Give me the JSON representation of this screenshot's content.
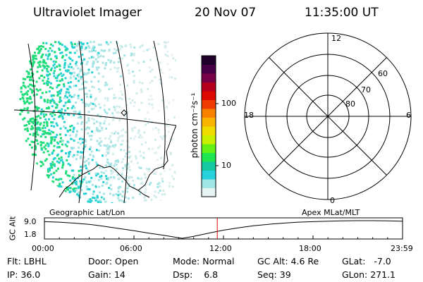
{
  "header": {
    "instrument": "Ultraviolet Imager",
    "date": "20 Nov 07",
    "time": "11:35:00 UT"
  },
  "colorbar": {
    "label": "photon cm⁻²s⁻¹",
    "tick_labels": [
      "100",
      "10"
    ],
    "scale": "log",
    "colors": [
      "#e8f4f4",
      "#a0e6e6",
      "#28d2dc",
      "#14c8a0",
      "#1ee650",
      "#64f014",
      "#c8f000",
      "#f0dc00",
      "#f8b400",
      "#f88200",
      "#ef3c00",
      "#dc0a00",
      "#b4001e",
      "#780046",
      "#460046",
      "#1e0028"
    ]
  },
  "polar_grid": {
    "mlt_labels": {
      "top": "12",
      "bottom": "0",
      "left": "18",
      "right": "6"
    },
    "lat_labels": [
      "60",
      "70",
      "80"
    ]
  },
  "chart_data": {
    "type": "line",
    "title": "",
    "ylabel": "GC Alt",
    "ytick_labels": [
      "9.0",
      "1.8"
    ],
    "ylim": [
      1.8,
      9.0
    ],
    "xtick_labels": [
      "00:00",
      "06:00",
      "12:00",
      "18:00",
      "23:59"
    ],
    "left_label": "Geographic Lat/Lon",
    "right_label": "Apex MLat/MLT",
    "current_time_hours": 11.583,
    "series": [
      {
        "x": [
          0,
          1,
          2,
          3,
          4,
          5,
          6,
          7,
          8,
          9,
          9.25,
          10,
          11,
          11.58,
          12,
          13,
          14,
          15,
          16,
          17,
          18,
          19,
          20,
          21,
          22,
          23,
          23.98
        ],
        "y": [
          8.6,
          8.4,
          8.0,
          7.5,
          6.7,
          5.8,
          4.9,
          3.9,
          3.0,
          2.0,
          1.8,
          2.6,
          3.9,
          4.6,
          5.1,
          6.1,
          6.9,
          7.5,
          8.0,
          8.4,
          8.6,
          8.8,
          8.9,
          9.0,
          9.0,
          8.9,
          8.8
        ]
      }
    ]
  },
  "status": {
    "flt_label": "Flt:",
    "flt_value": "LBHL",
    "ip_label": "IP:",
    "ip_value": "36.0",
    "door_label": "Door:",
    "door_value": "Open",
    "gain_label": "Gain:",
    "gain_value": "14",
    "mode_label": "Mode:",
    "mode_value": "Normal",
    "dsp_label": "Dsp:",
    "dsp_value": "6.8",
    "gcalt_label": "GC Alt:",
    "gcalt_value": "4.6 Re",
    "seq_label": "Seq:",
    "seq_value": "39",
    "glat_label": "GLat:",
    "glat_value": "-7.0",
    "glon_label": "GLon:",
    "glon_value": "271.1"
  }
}
